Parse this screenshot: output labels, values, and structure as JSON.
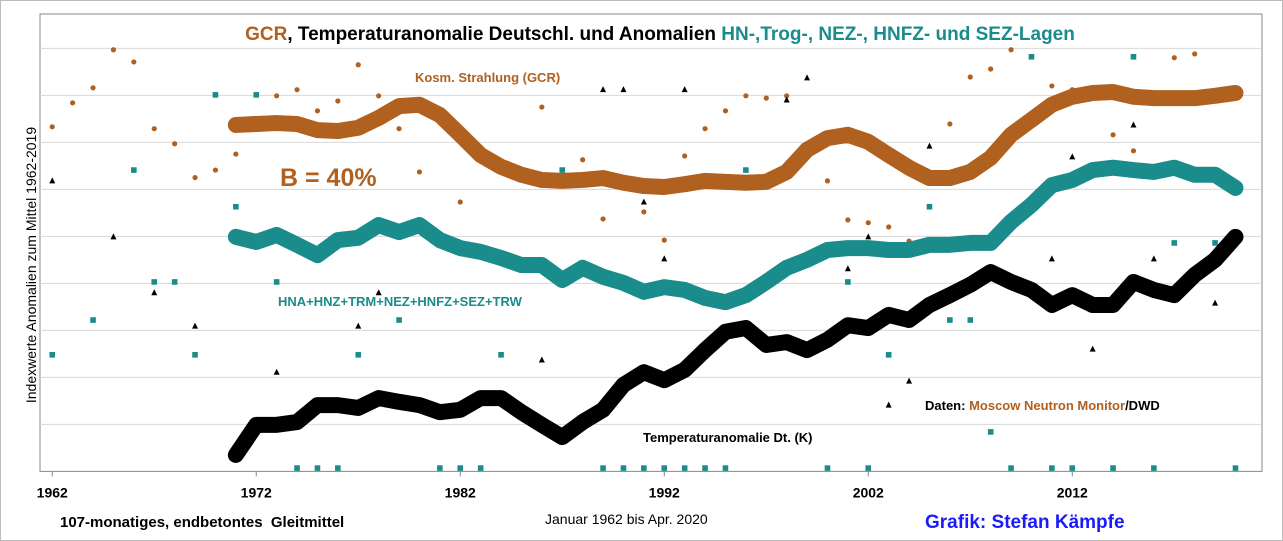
{
  "chart_data": {
    "type": "line",
    "title_parts": [
      {
        "text": "GCR",
        "color": "#b0601f"
      },
      {
        "text": ", Temperaturanomalie Deutschl. und Anomalien ",
        "color": "#000000"
      },
      {
        "text": "HN-,Trog-, NEZ-, HNFZ- und SEZ-Lagen",
        "color": "#1a8c8c"
      }
    ],
    "y_label": "Indexwerte Anomalien zum Mittel 1962-2019",
    "footer_left": "107-monatiges, endbetontes  Gleitmittel",
    "footer_center": "Januar 1962 bis Apr. 2020",
    "footer_right": "Grafik: Stefan Kämpfe",
    "annotation_b": "B = 40%",
    "source_parts": [
      {
        "text": "Daten: ",
        "color": "#000000"
      },
      {
        "text": "Moscow Neutron Monitor",
        "color": "#b0601f"
      },
      {
        "text": "/DWD",
        "color": "#000000"
      }
    ],
    "xlim": [
      1961.4,
      2021.3
    ],
    "xticks": [
      1962,
      1972,
      1982,
      1992,
      2002,
      2012
    ],
    "ylim": [
      -1,
      8.73
    ],
    "yticks": [
      0,
      1,
      2,
      3,
      4,
      5,
      6,
      7,
      8
    ],
    "show_ytick_labels": false,
    "grid": true,
    "x": [
      1971,
      1972,
      1973,
      1974,
      1975,
      1976,
      1977,
      1978,
      1979,
      1980,
      1981,
      1982,
      1983,
      1984,
      1985,
      1986,
      1987,
      1988,
      1989,
      1990,
      1991,
      1992,
      1993,
      1994,
      1995,
      1996,
      1997,
      1998,
      1999,
      2000,
      2001,
      2002,
      2003,
      2004,
      2005,
      2006,
      2007,
      2008,
      2009,
      2010,
      2011,
      2012,
      2013,
      2014,
      2015,
      2016,
      2017,
      2018,
      2019,
      2020
    ],
    "series": [
      {
        "label": "Kosm. Strahlung (GCR)",
        "color": "#b0601f",
        "values": [
          6.37,
          6.39,
          6.41,
          6.39,
          6.26,
          6.24,
          6.31,
          6.52,
          6.77,
          6.8,
          6.58,
          6.16,
          5.73,
          5.48,
          5.31,
          5.2,
          5.18,
          5.2,
          5.24,
          5.14,
          5.07,
          5.05,
          5.11,
          5.18,
          5.16,
          5.14,
          5.16,
          5.37,
          5.84,
          6.09,
          6.16,
          6.01,
          5.73,
          5.46,
          5.24,
          5.24,
          5.37,
          5.67,
          6.16,
          6.48,
          6.8,
          6.97,
          7.05,
          7.07,
          6.97,
          6.94,
          6.94,
          6.94,
          6.99,
          7.05
        ]
      },
      {
        "label": "HNA+HNZ+TRM+NEZ+HNFZ+SEZ+TRW",
        "color": "#1a8c8c",
        "values": [
          3.99,
          3.88,
          4.03,
          3.82,
          3.6,
          3.92,
          3.97,
          4.24,
          4.09,
          4.24,
          3.92,
          3.75,
          3.67,
          3.54,
          3.39,
          3.39,
          3.07,
          3.33,
          3.14,
          3.01,
          2.82,
          2.92,
          2.86,
          2.69,
          2.6,
          2.75,
          3.03,
          3.33,
          3.5,
          3.71,
          3.75,
          3.75,
          3.71,
          3.71,
          3.82,
          3.82,
          3.86,
          3.86,
          4.31,
          4.67,
          5.09,
          5.2,
          5.41,
          5.46,
          5.41,
          5.37,
          5.46,
          5.31,
          5.31,
          5.03
        ]
      },
      {
        "label": "Temperaturanomalie Dt. (K)",
        "color": "#000000",
        "values": [
          -0.65,
          -0.01,
          -0.01,
          0.05,
          0.41,
          0.41,
          0.35,
          0.56,
          0.48,
          0.41,
          0.26,
          0.31,
          0.56,
          0.56,
          0.26,
          -0.01,
          -0.27,
          0.05,
          0.31,
          0.84,
          1.11,
          0.94,
          1.16,
          1.58,
          1.97,
          2.05,
          1.69,
          1.75,
          1.58,
          1.8,
          2.11,
          2.05,
          2.33,
          2.22,
          2.54,
          2.75,
          2.97,
          3.24,
          3.03,
          2.86,
          2.54,
          2.75,
          2.54,
          2.54,
          3.03,
          2.86,
          2.75,
          3.18,
          3.5,
          3.99
        ]
      }
    ],
    "scatter": [
      {
        "marker": "circle",
        "color": "#b0601f",
        "x": [
          1962,
          1963,
          1964,
          1965,
          1966,
          1967,
          1968,
          1969,
          1970,
          1971,
          1973,
          1974,
          1975,
          1976,
          1977,
          1978,
          1979,
          1980,
          1982,
          1984,
          1986,
          1988,
          1989,
          1991,
          1992,
          1993,
          1994,
          1995,
          1996,
          1997,
          1998,
          2000,
          2001,
          2002,
          2003,
          2004,
          2006,
          2007,
          2008,
          2009,
          2011,
          2012,
          2014,
          2015,
          2017,
          2018,
          2019
        ],
        "values": [
          6.33,
          6.84,
          7.16,
          7.97,
          7.71,
          6.29,
          5.97,
          5.25,
          5.41,
          5.75,
          6.99,
          7.12,
          6.67,
          6.88,
          7.65,
          6.99,
          6.29,
          5.37,
          4.73,
          5.37,
          6.75,
          5.63,
          4.37,
          4.52,
          3.92,
          5.71,
          6.29,
          6.67,
          6.99,
          6.94,
          6.99,
          5.18,
          4.35,
          4.29,
          4.2,
          3.9,
          6.39,
          7.39,
          7.56,
          7.97,
          7.2,
          7.12,
          6.16,
          5.82,
          7.8,
          7.88,
          3.86
        ]
      },
      {
        "marker": "square",
        "color": "#1a8c8c",
        "x": [
          1962,
          1964,
          1966,
          1967,
          1968,
          1969,
          1970,
          1971,
          1972,
          1973,
          1974,
          1975,
          1976,
          1977,
          1979,
          1981,
          1982,
          1983,
          1984,
          1987,
          1989,
          1990,
          1991,
          1992,
          1993,
          1994,
          1995,
          1996,
          2000,
          2001,
          2002,
          2003,
          2005,
          2006,
          2007,
          2008,
          2009,
          2010,
          2011,
          2012,
          2014,
          2015,
          2016,
          2017,
          2019,
          2020
        ],
        "values": [
          1.48,
          2.22,
          5.41,
          3.03,
          3.03,
          1.48,
          7.01,
          4.63,
          7.01,
          3.03,
          -0.93,
          -0.93,
          -0.93,
          1.48,
          2.22,
          -0.93,
          -0.93,
          -0.93,
          1.48,
          5.41,
          -0.93,
          -0.93,
          -0.93,
          -0.93,
          -0.93,
          -0.93,
          -0.93,
          5.41,
          -0.93,
          3.03,
          -0.93,
          1.48,
          4.63,
          2.22,
          2.22,
          -0.16,
          -0.93,
          7.82,
          -0.93,
          -0.93,
          -0.93,
          7.82,
          -0.93,
          3.86,
          3.86,
          -0.93
        ]
      },
      {
        "marker": "triangle",
        "color": "#000000",
        "x": [
          1962,
          1965,
          1967,
          1969,
          1973,
          1977,
          1978,
          1986,
          1989,
          1990,
          1991,
          1992,
          1993,
          1998,
          1999,
          2001,
          2002,
          2003,
          2004,
          2005,
          2011,
          2012,
          2013,
          2015,
          2016,
          2019
        ],
        "values": [
          5.18,
          3.99,
          2.8,
          2.09,
          1.11,
          2.09,
          2.8,
          1.37,
          7.12,
          7.12,
          4.73,
          3.52,
          7.12,
          6.9,
          7.37,
          3.31,
          3.99,
          0.41,
          0.92,
          5.92,
          3.52,
          5.69,
          1.6,
          6.37,
          3.52,
          2.58
        ]
      }
    ]
  }
}
